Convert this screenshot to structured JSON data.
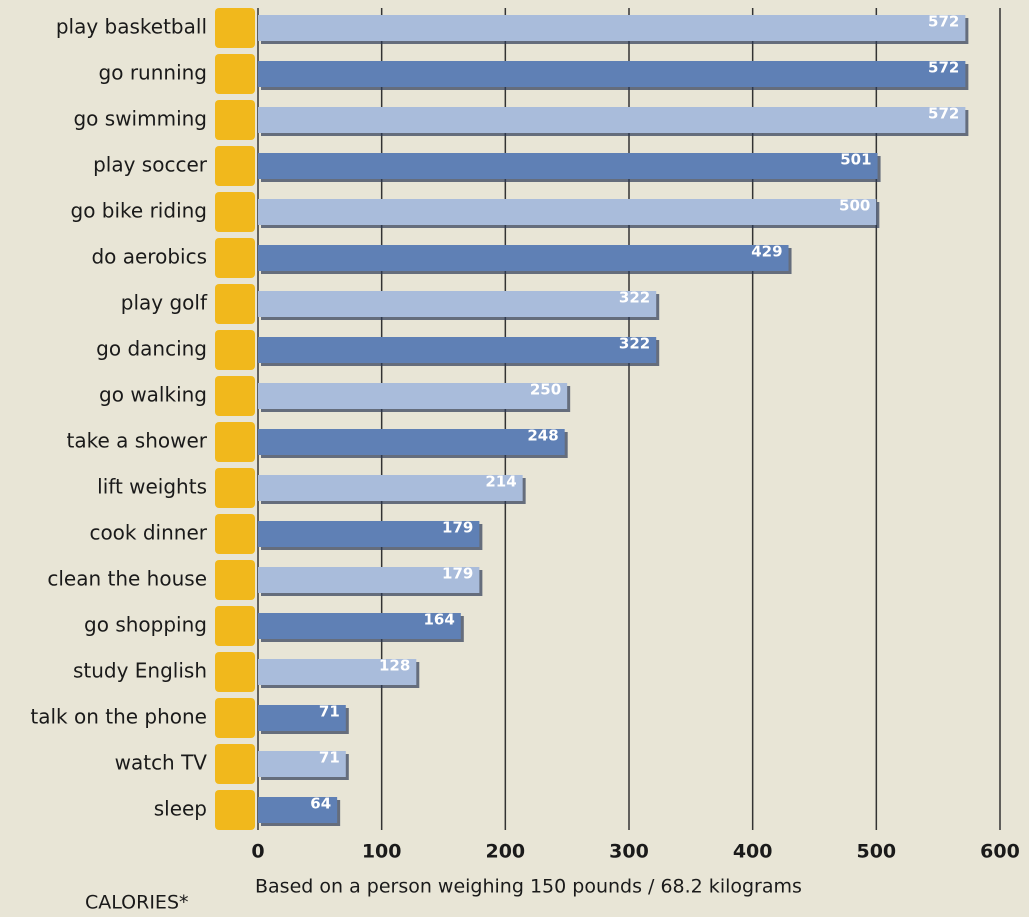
{
  "chart_data": {
    "type": "bar",
    "orientation": "horizontal",
    "categories": [
      "play basketball",
      "go running",
      "go swimming",
      "play soccer",
      "go bike riding",
      "do aerobics",
      "play golf",
      "go dancing",
      "go walking",
      "take a shower",
      "lift weights",
      "cook dinner",
      "clean the house",
      "go shopping",
      "study English",
      "talk on the phone",
      "watch TV",
      "sleep"
    ],
    "values": [
      572,
      572,
      572,
      501,
      500,
      429,
      322,
      322,
      250,
      248,
      214,
      179,
      179,
      164,
      128,
      71,
      71,
      64
    ],
    "colors": [
      "#a9bcdb",
      "#5f80b5",
      "#a9bcdb",
      "#5f80b5",
      "#a9bcdb",
      "#5f80b5",
      "#a9bcdb",
      "#5f80b5",
      "#a9bcdb",
      "#5f80b5",
      "#a9bcdb",
      "#5f80b5",
      "#a9bcdb",
      "#5f80b5",
      "#a9bcdb",
      "#5f80b5",
      "#a9bcdb",
      "#5f80b5"
    ],
    "xlim": [
      0,
      600
    ],
    "xticks": [
      0,
      100,
      200,
      300,
      400,
      500,
      600
    ],
    "grid": true,
    "x_label": "CALORIES*",
    "note": "Based on a person weighing 150 pounds / 68.2 kilograms"
  }
}
